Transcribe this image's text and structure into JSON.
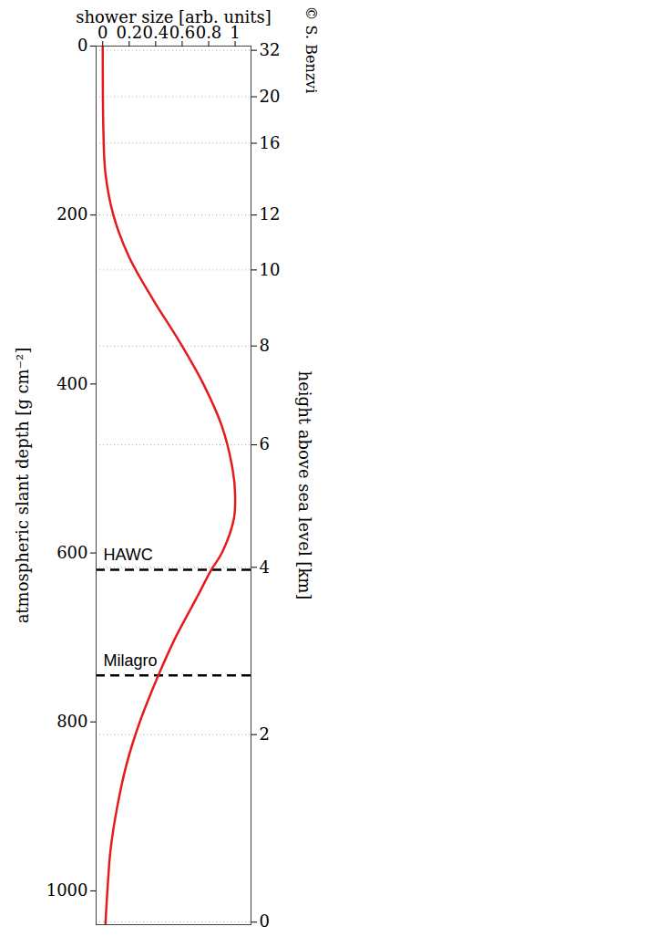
{
  "chart_data": {
    "type": "line",
    "xlabel": "shower size [arb. units]",
    "ylabel": "atmospheric slant depth [g cm⁻²]",
    "y2label": "height above sea level [km]",
    "credit": "© S. Benzvi",
    "color": "#e41a1c",
    "depth": [
      0,
      100,
      150,
      200,
      250,
      300,
      350,
      400,
      450,
      500,
      530,
      560,
      600,
      620,
      650,
      700,
      745,
      800,
      850,
      900,
      950,
      1000,
      1040
    ],
    "values": [
      0,
      0.005,
      0.02,
      0.08,
      0.2,
      0.38,
      0.58,
      0.76,
      0.9,
      0.98,
      1.0,
      0.99,
      0.9,
      0.82,
      0.72,
      0.55,
      0.42,
      0.28,
      0.18,
      0.11,
      0.06,
      0.035,
      0.02
    ],
    "xlim": [
      -0.05,
      1.12
    ],
    "xticks": [
      0,
      0.2,
      0.4,
      0.6,
      0.8,
      1
    ],
    "ylim": [
      0,
      1040
    ],
    "yticks": [
      0,
      200,
      400,
      600,
      800,
      1000
    ],
    "height_ticks": [
      {
        "height": 32,
        "depth": 5
      },
      {
        "height": 20,
        "depth": 60
      },
      {
        "height": 16,
        "depth": 115
      },
      {
        "height": 12,
        "depth": 200
      },
      {
        "height": 10,
        "depth": 265
      },
      {
        "height": 8,
        "depth": 355
      },
      {
        "height": 6,
        "depth": 472
      },
      {
        "height": 4,
        "depth": 617
      },
      {
        "height": 2,
        "depth": 815
      },
      {
        "height": 0,
        "depth": 1037
      }
    ],
    "annotations": [
      {
        "label": "HAWC",
        "depth": 620,
        "line_style": "dashed"
      },
      {
        "label": "Milagro",
        "depth": 745,
        "line_style": "dashed"
      }
    ],
    "grid": true
  }
}
